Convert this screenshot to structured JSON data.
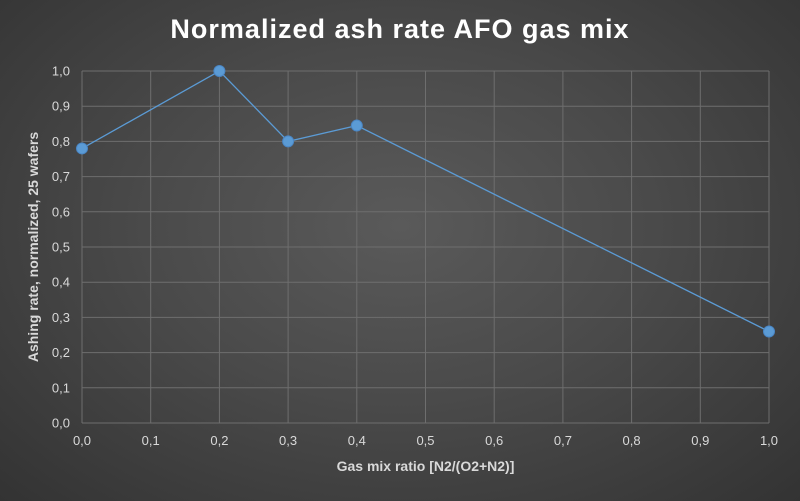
{
  "chart_data": {
    "type": "line",
    "title": "Normalized ash rate AFO gas mix",
    "xlabel": "Gas mix ratio [N2/(O2+N2)]",
    "ylabel": "Ashing rate, normalized, 25 wafers",
    "xlim": [
      0,
      1
    ],
    "ylim": [
      0,
      1
    ],
    "x_ticks": [
      "0,0",
      "0,1",
      "0,2",
      "0,3",
      "0,4",
      "0,5",
      "0,6",
      "0,7",
      "0,8",
      "0,9",
      "1,0"
    ],
    "y_ticks": [
      "0,0",
      "0,1",
      "0,2",
      "0,3",
      "0,4",
      "0,5",
      "0,6",
      "0,7",
      "0,8",
      "0,9",
      "1,0"
    ],
    "grid": true,
    "series": [
      {
        "x": [
          0.0,
          0.2,
          0.3,
          0.4,
          1.0
        ],
        "values": [
          0.78,
          1.0,
          0.8,
          0.845,
          0.26
        ],
        "color": "#5b9bd5"
      }
    ]
  }
}
